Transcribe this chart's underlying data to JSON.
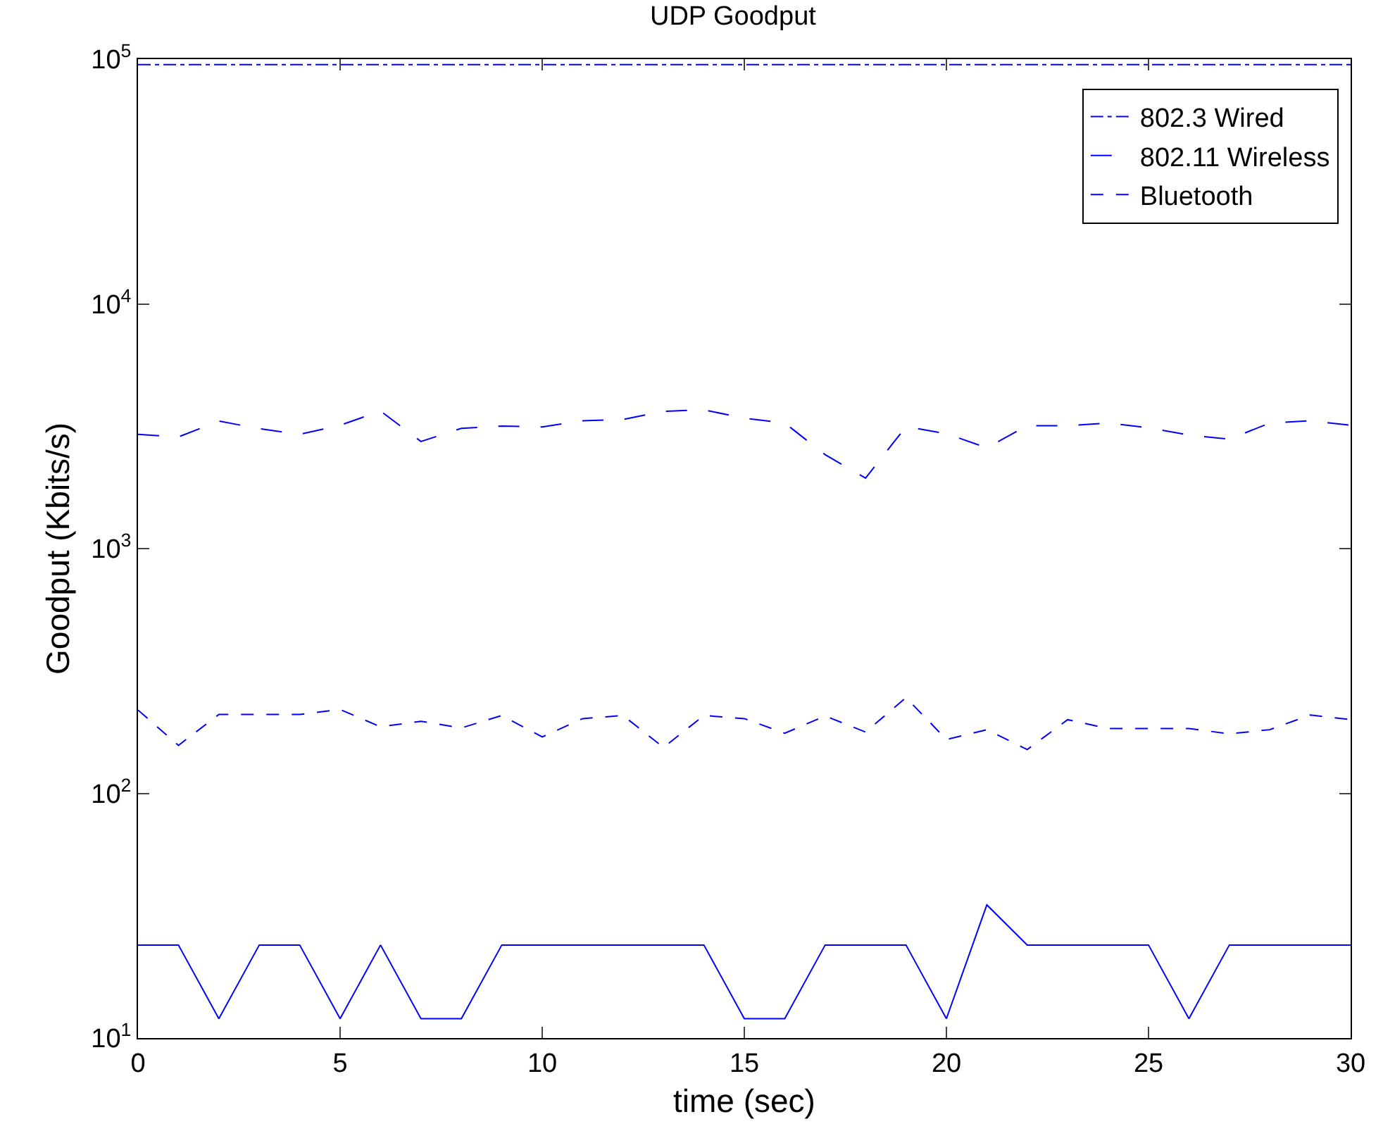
{
  "chart_data": {
    "type": "line",
    "title": "UDP Goodput",
    "xlabel": "time (sec)",
    "ylabel": "Goodput (Kbits/s)",
    "x": [
      0,
      1,
      2,
      3,
      4,
      5,
      6,
      7,
      8,
      9,
      10,
      11,
      12,
      13,
      14,
      15,
      16,
      17,
      18,
      19,
      20,
      21,
      22,
      23,
      24,
      25,
      26,
      27,
      28,
      29,
      30
    ],
    "xlim": [
      0,
      30
    ],
    "xticks": [
      0,
      5,
      10,
      15,
      20,
      25,
      30
    ],
    "ylim": [
      10,
      100000
    ],
    "yticks": [
      {
        "value": 10,
        "label": "10$^{1}$"
      },
      {
        "value": 100,
        "label": "10$^{2}$"
      },
      {
        "value": 1000,
        "label": "10$^{3}$"
      },
      {
        "value": 10000,
        "label": "10$^{4}$"
      },
      {
        "value": 100000,
        "label": "10$^{5}$"
      }
    ],
    "log": "y",
    "grid": false,
    "legend": "top right",
    "marker": "none",
    "series": [
      {
        "name": "802.3 Wired",
        "color": "#0000ff",
        "line_style": "dashdot",
        "values": [
          95000,
          95000,
          95000,
          95000,
          95000,
          95000,
          95000,
          95000,
          95000,
          95000,
          95000,
          95000,
          95000,
          95000,
          95000,
          95000,
          95000,
          95000,
          95000,
          95000,
          95000,
          95000,
          95000,
          95000,
          95000,
          95000,
          95000,
          95000,
          95000,
          95000,
          95000
        ]
      },
      {
        "name": "802.11 Wireless",
        "color": "#0000ff",
        "line_style": "longdash",
        "values": [
          2930,
          2860,
          3320,
          3090,
          2930,
          3190,
          3650,
          2740,
          3100,
          3170,
          3140,
          3330,
          3370,
          3640,
          3690,
          3410,
          3260,
          2420,
          1940,
          3150,
          2950,
          2580,
          3180,
          3180,
          3260,
          3120,
          2910,
          2800,
          3260,
          3330,
          3190
        ]
      },
      {
        "name": "Bluetooth",
        "color": "#0000ff",
        "line_style": "dashed",
        "values": [
          219,
          157,
          210,
          210,
          210,
          220,
          187,
          197,
          185,
          208,
          170,
          202,
          208,
          154,
          208,
          202,
          176,
          207,
          178,
          246,
          166,
          182,
          151,
          200,
          184,
          184,
          184,
          175,
          182,
          209,
          200
        ]
      },
      {
        "color": "#0000ff",
        "line_style": "solid",
        "values": [
          24,
          24,
          12,
          24,
          24,
          12,
          24,
          12,
          12,
          24,
          24,
          24,
          24,
          24,
          24,
          12,
          12,
          24,
          24,
          24,
          12,
          35,
          24,
          24,
          24,
          24,
          12,
          24,
          24,
          24,
          24
        ]
      }
    ]
  }
}
